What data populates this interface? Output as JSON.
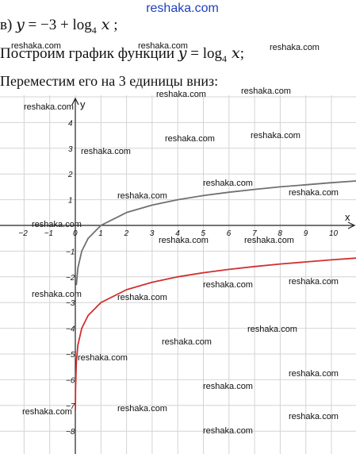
{
  "header": {
    "brand": "reshaka.com"
  },
  "text": {
    "line1": {
      "prefix": "в) ",
      "y": "y",
      "eq": " = −3 + log",
      "base": "4",
      "x": " x",
      "suffix": " ;"
    },
    "line2": {
      "prefix": "Построим график функции ",
      "y": "y",
      "eq": " = log",
      "base": "4",
      "x": " x",
      "suffix": ";"
    },
    "line3": "Переместим его на 3 единицы вниз:"
  },
  "watermark_text": "reshaka.com",
  "chart_data": {
    "type": "line",
    "xlabel": "x",
    "ylabel": "y",
    "xlim": [
      -2.5,
      11
    ],
    "ylim": [
      -9,
      5
    ],
    "x_ticks": [
      -2,
      -1,
      0,
      1,
      2,
      3,
      4,
      5,
      6,
      7,
      8,
      9,
      10
    ],
    "y_ticks": [
      -8,
      -7,
      -6,
      -5,
      -4,
      -3,
      -2,
      -1,
      1,
      2,
      3,
      4
    ],
    "grid": true,
    "series": [
      {
        "color": "#707070",
        "x": [
          0.04,
          0.1,
          0.25,
          0.5,
          1,
          2,
          3,
          4,
          5,
          6,
          7,
          8,
          9,
          10,
          11
        ],
        "y": [
          -2.32,
          -1.66,
          -1.0,
          -0.5,
          0,
          0.5,
          0.79,
          1,
          1.16,
          1.29,
          1.4,
          1.5,
          1.58,
          1.66,
          1.73
        ]
      },
      {
        "color": "#d03030",
        "x": [
          0.003,
          0.01,
          0.04,
          0.1,
          0.25,
          0.5,
          1,
          2,
          3,
          4,
          5,
          6,
          7,
          8,
          9,
          10,
          11
        ],
        "y": [
          -7.19,
          -6.32,
          -5.32,
          -4.66,
          -4.0,
          -3.5,
          -3.0,
          -2.5,
          -2.21,
          -2.0,
          -1.84,
          -1.71,
          -1.6,
          -1.5,
          -1.42,
          -1.34,
          -1.27
        ]
      }
    ]
  }
}
